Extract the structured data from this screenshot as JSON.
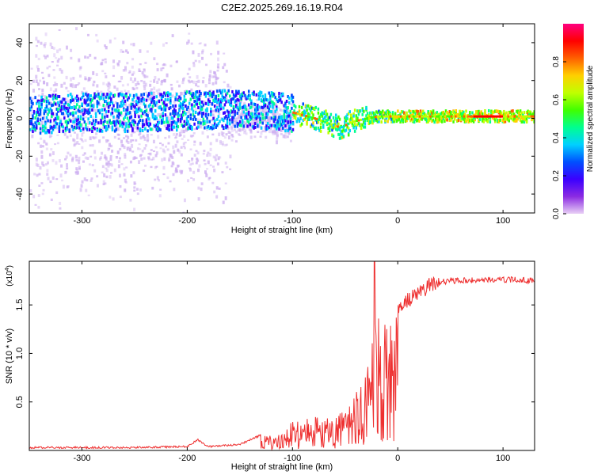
{
  "chart_data": [
    {
      "type": "heatmap",
      "title": "C2E2.2025.269.16.19.R04",
      "xlabel": "Height of straight line (km)",
      "ylabel": "Frequency (Hz)",
      "xlim": [
        -350,
        130
      ],
      "ylim": [
        -50,
        50
      ],
      "xticks": [
        -300,
        -200,
        -100,
        0,
        100
      ],
      "yticks": [
        -40,
        -20,
        0,
        20,
        40
      ],
      "colorbar": {
        "label": "Normalized spectral amplitude",
        "range": [
          0,
          1
        ],
        "ticks": [
          "0.0",
          "0.2",
          "0.4",
          "0.6",
          "0.8"
        ],
        "colors": [
          "#e8d0f5",
          "#8b2be2",
          "#3b00ff",
          "#0050ff",
          "#00d0ff",
          "#00ff90",
          "#40ff00",
          "#c0ff00",
          "#ffd000",
          "#ff6000",
          "#ff0000",
          "#ff0080"
        ]
      },
      "frequency_track": [
        {
          "x": -350,
          "y": 2
        },
        {
          "x": -300,
          "y": 3
        },
        {
          "x": -250,
          "y": 3
        },
        {
          "x": -200,
          "y": 4
        },
        {
          "x": -150,
          "y": 5
        },
        {
          "x": -120,
          "y": 4
        },
        {
          "x": -100,
          "y": 3
        },
        {
          "x": -80,
          "y": 0
        },
        {
          "x": -65,
          "y": -3
        },
        {
          "x": -55,
          "y": -5
        },
        {
          "x": -45,
          "y": -2
        },
        {
          "x": -30,
          "y": 0
        },
        {
          "x": -20,
          "y": 1
        },
        {
          "x": -10,
          "y": 1
        },
        {
          "x": 0,
          "y": 1
        },
        {
          "x": 50,
          "y": 1
        },
        {
          "x": 90,
          "y": 1
        },
        {
          "x": 130,
          "y": 1
        }
      ]
    },
    {
      "type": "line",
      "series_name": "SNR",
      "xlabel": "Height of straight line (km)",
      "ylabel": "SNR (10 * v/v)",
      "scale_label": "(x10",
      "scale_exponent": "4",
      "xlim": [
        -350,
        130
      ],
      "ylim": [
        0,
        1.95
      ],
      "xticks": [
        -300,
        -200,
        -100,
        0,
        100
      ],
      "yticks": [
        "0.5",
        "1.0",
        "1.5"
      ],
      "color": "#ee3030",
      "envelope": [
        {
          "x": -350,
          "y": 0.02
        },
        {
          "x": -250,
          "y": 0.02
        },
        {
          "x": -200,
          "y": 0.03
        },
        {
          "x": -190,
          "y": 0.1
        },
        {
          "x": -180,
          "y": 0.03
        },
        {
          "x": -150,
          "y": 0.05
        },
        {
          "x": -130,
          "y": 0.15
        },
        {
          "x": -110,
          "y": 0.2
        },
        {
          "x": -100,
          "y": 0.3
        },
        {
          "x": -80,
          "y": 0.35
        },
        {
          "x": -60,
          "y": 0.4
        },
        {
          "x": -50,
          "y": 0.45
        },
        {
          "x": -40,
          "y": 0.6
        },
        {
          "x": -30,
          "y": 0.85
        },
        {
          "x": -25,
          "y": 1.3
        },
        {
          "x": -20,
          "y": 1.45
        },
        {
          "x": -15,
          "y": 1.3
        },
        {
          "x": -10,
          "y": 1.35
        },
        {
          "x": 0,
          "y": 1.45
        },
        {
          "x": 10,
          "y": 1.55
        },
        {
          "x": 20,
          "y": 1.62
        },
        {
          "x": 30,
          "y": 1.7
        },
        {
          "x": 40,
          "y": 1.74
        },
        {
          "x": 60,
          "y": 1.75
        },
        {
          "x": 90,
          "y": 1.76
        },
        {
          "x": 110,
          "y": 1.76
        },
        {
          "x": 130,
          "y": 1.75
        }
      ],
      "peak": {
        "x": -22,
        "y": 1.95
      }
    }
  ]
}
